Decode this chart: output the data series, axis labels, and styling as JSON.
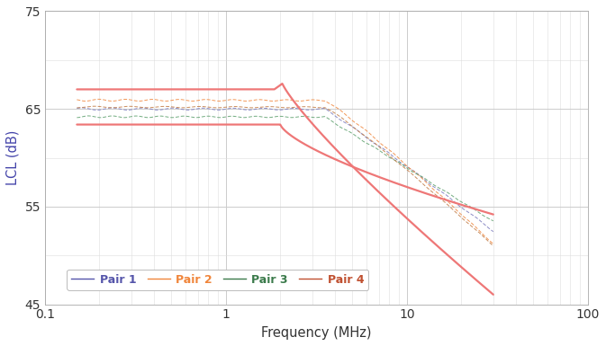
{
  "xlabel": "Frequency (MHz)",
  "ylabel": "LCL (dB)",
  "xlim": [
    0.1,
    100
  ],
  "ylim": [
    45,
    75
  ],
  "yticks": [
    45,
    55,
    65,
    75
  ],
  "ytick_labels": [
    "45",
    "55",
    "65",
    "75"
  ],
  "pair1_color": "#7777bb",
  "pair2_color": "#f0853a",
  "pair3_color": "#5a9e6a",
  "pair4_color": "#c07840",
  "limit_color": "#ee7777",
  "bg_color": "#ffffff",
  "grid_major_color": "#cccccc",
  "grid_minor_color": "#dddddd",
  "legend_labels": [
    "Pair 1",
    "Pair 2",
    "Pair 3",
    "Pair 4"
  ],
  "legend_colors": [
    "#5555aa",
    "#f0853a",
    "#3a7a4a",
    "#c05030"
  ],
  "axis_label_color": "#4444aa"
}
